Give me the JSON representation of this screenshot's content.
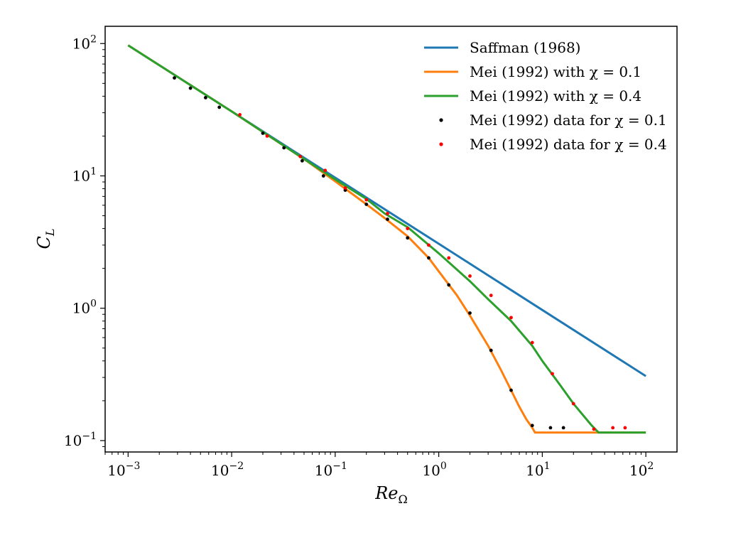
{
  "chart_data": {
    "type": "line",
    "xscale": "log",
    "yscale": "log",
    "xlim": [
      0.0006,
      200
    ],
    "ylim": [
      0.082,
      135
    ],
    "xlabel": "Re_Ω",
    "ylabel": "C_L",
    "grid": false,
    "legend_position": "top-right",
    "x_ticks": [
      {
        "value": 0.001,
        "base": "10",
        "exp": "−3"
      },
      {
        "value": 0.01,
        "base": "10",
        "exp": "−2"
      },
      {
        "value": 0.1,
        "base": "10",
        "exp": "−1"
      },
      {
        "value": 1,
        "base": "10",
        "exp": "0"
      },
      {
        "value": 10,
        "base": "10",
        "exp": "1"
      },
      {
        "value": 100,
        "base": "10",
        "exp": "2"
      }
    ],
    "y_ticks": [
      {
        "value": 0.1,
        "base": "10",
        "exp": "−1"
      },
      {
        "value": 1,
        "base": "10",
        "exp": "0"
      },
      {
        "value": 10,
        "base": "10",
        "exp": "1"
      },
      {
        "value": 100,
        "base": "10",
        "exp": "2"
      }
    ],
    "series": [
      {
        "name": "Saffman (1968)",
        "kind": "line",
        "color": "#1f77b4",
        "x": [
          0.001,
          0.01,
          0.1,
          1,
          10,
          100
        ],
        "y": [
          97,
          30.7,
          9.7,
          3.07,
          0.97,
          0.307
        ]
      },
      {
        "name": "Mei (1992) with χ = 0.1",
        "kind": "line",
        "color": "#ff7f0e",
        "x": [
          0.001,
          0.01,
          0.05,
          0.1,
          0.2,
          0.3,
          0.5,
          0.8,
          1,
          1.5,
          2,
          3,
          4,
          5,
          6,
          7,
          8,
          8.5,
          10,
          20,
          50,
          100
        ],
        "y": [
          97,
          30.7,
          13.4,
          9.1,
          6.1,
          4.8,
          3.5,
          2.4,
          1.9,
          1.25,
          0.88,
          0.52,
          0.34,
          0.24,
          0.18,
          0.145,
          0.125,
          0.115,
          0.115,
          0.115,
          0.115,
          0.115
        ]
      },
      {
        "name": "Mei (1992) with χ = 0.4",
        "kind": "line",
        "color": "#2ca02c",
        "x": [
          0.001,
          0.01,
          0.1,
          0.2,
          0.3,
          0.5,
          1,
          2,
          3,
          5,
          8,
          10,
          15,
          20,
          30,
          35,
          50,
          100
        ],
        "y": [
          97,
          30.7,
          9.4,
          6.7,
          5.2,
          4.1,
          2.6,
          1.6,
          1.17,
          0.8,
          0.52,
          0.4,
          0.26,
          0.19,
          0.13,
          0.115,
          0.115,
          0.115
        ]
      },
      {
        "name": "Mei (1992) data for χ = 0.1",
        "kind": "scatter",
        "color": "#000000",
        "x": [
          0.0028,
          0.004,
          0.0056,
          0.0076,
          0.02,
          0.032,
          0.048,
          0.077,
          0.125,
          0.2,
          0.32,
          0.5,
          0.8,
          1.25,
          2,
          3.2,
          5,
          8,
          12,
          16
        ],
        "y": [
          55,
          46,
          39,
          33,
          21,
          16.3,
          13,
          10,
          7.8,
          6.1,
          4.7,
          3.4,
          2.4,
          1.5,
          0.92,
          0.48,
          0.24,
          0.13,
          0.125,
          0.125
        ]
      },
      {
        "name": "Mei (1992) data for χ = 0.4",
        "kind": "scatter",
        "color": "#ff0000",
        "x": [
          0.012,
          0.022,
          0.046,
          0.08,
          0.125,
          0.2,
          0.32,
          0.5,
          0.8,
          1.25,
          2,
          3.2,
          5,
          8,
          12.5,
          20,
          31.5,
          48,
          63
        ],
        "y": [
          29,
          20,
          14,
          11,
          8.1,
          6.6,
          5.2,
          4,
          3,
          2.4,
          1.75,
          1.25,
          0.85,
          0.55,
          0.32,
          0.19,
          0.122,
          0.125,
          0.125
        ]
      }
    ]
  }
}
